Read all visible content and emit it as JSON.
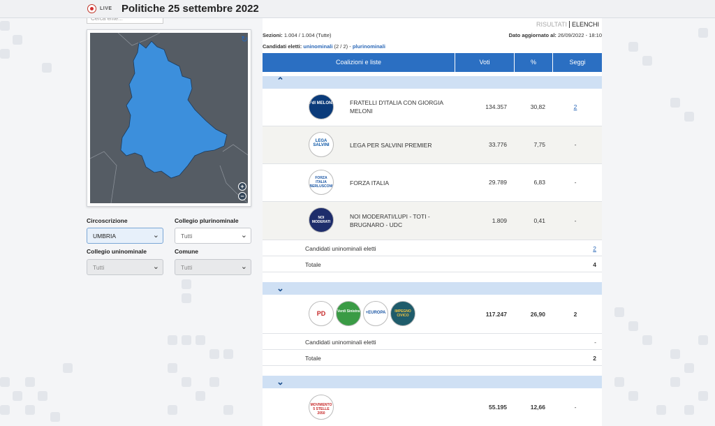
{
  "header": {
    "live_label": "LIVE",
    "title": "Politiche 25 settembre 2022"
  },
  "left": {
    "search_placeholder": "Cerca ente...",
    "filters": {
      "circoscrizione_label": "Circoscrizione",
      "circoscrizione_value": "UMBRIA",
      "plurinominale_label": "Collegio plurinominale",
      "plurinominale_value": "Tutti",
      "uninominale_label": "Collegio uninominale",
      "uninominale_value": "Tutti",
      "comune_label": "Comune",
      "comune_value": "Tutti"
    }
  },
  "main": {
    "tabs": {
      "risultati": "RISULTATI",
      "elenchi": "ELENCHI"
    },
    "sezioni_label": "Sezioni:",
    "sezioni_value": "1.004 / 1.004 (Tutte)",
    "updated_label": "Dato aggiornato al:",
    "updated_value": "26/09/2022 - 18:10",
    "eletti_label": "Candidati eletti:",
    "eletti_uninominali": "uninominali",
    "eletti_count": "(2 / 2) -",
    "eletti_plurinominali": "plurinominali",
    "table_headers": {
      "coalizioni": "Coalizioni e liste",
      "voti": "Voti",
      "pct": "%",
      "seggi": "Seggi"
    },
    "coalitions": [
      {
        "lists": [
          {
            "logo": "FdI MELONI",
            "name": "FRATELLI D'ITALIA CON GIORGIA MELONI",
            "voti": "134.357",
            "pct": "30,82",
            "seggi": "2"
          },
          {
            "logo": "LEGA SALVINI",
            "name": "LEGA PER SALVINI PREMIER",
            "voti": "33.776",
            "pct": "7,75",
            "seggi": "-"
          },
          {
            "logo": "FORZA ITALIA BERLUSCONI",
            "name": "FORZA ITALIA",
            "voti": "29.789",
            "pct": "6,83",
            "seggi": "-"
          },
          {
            "logo": "NOI MODERATI",
            "name": "NOI MODERATI/LUPI - TOTI - BRUGNARO - UDC",
            "voti": "1.809",
            "pct": "0,41",
            "seggi": "-"
          }
        ],
        "uninominali_label": "Candidati uninominali eletti",
        "uninominali_value": "2",
        "totale_label": "Totale",
        "totale_value": "4"
      },
      {
        "logos": [
          "PD",
          "Verdi Sinistra",
          "+EUROPA",
          "IMPEGNO CIVICO"
        ],
        "voti": "117.247",
        "pct": "26,90",
        "seggi": "2",
        "uninominali_label": "Candidati uninominali eletti",
        "uninominali_value": "-",
        "totale_label": "Totale",
        "totale_value": "2"
      },
      {
        "logos": [
          "MOVIMENTO 5 STELLE 2050"
        ],
        "voti": "55.195",
        "pct": "12,66",
        "seggi": "-"
      }
    ]
  },
  "colors": {
    "accent": "#2b6fc2",
    "group_bar": "#cfe0f4",
    "region": "#3c8fdc",
    "map_bg": "#555c64"
  }
}
